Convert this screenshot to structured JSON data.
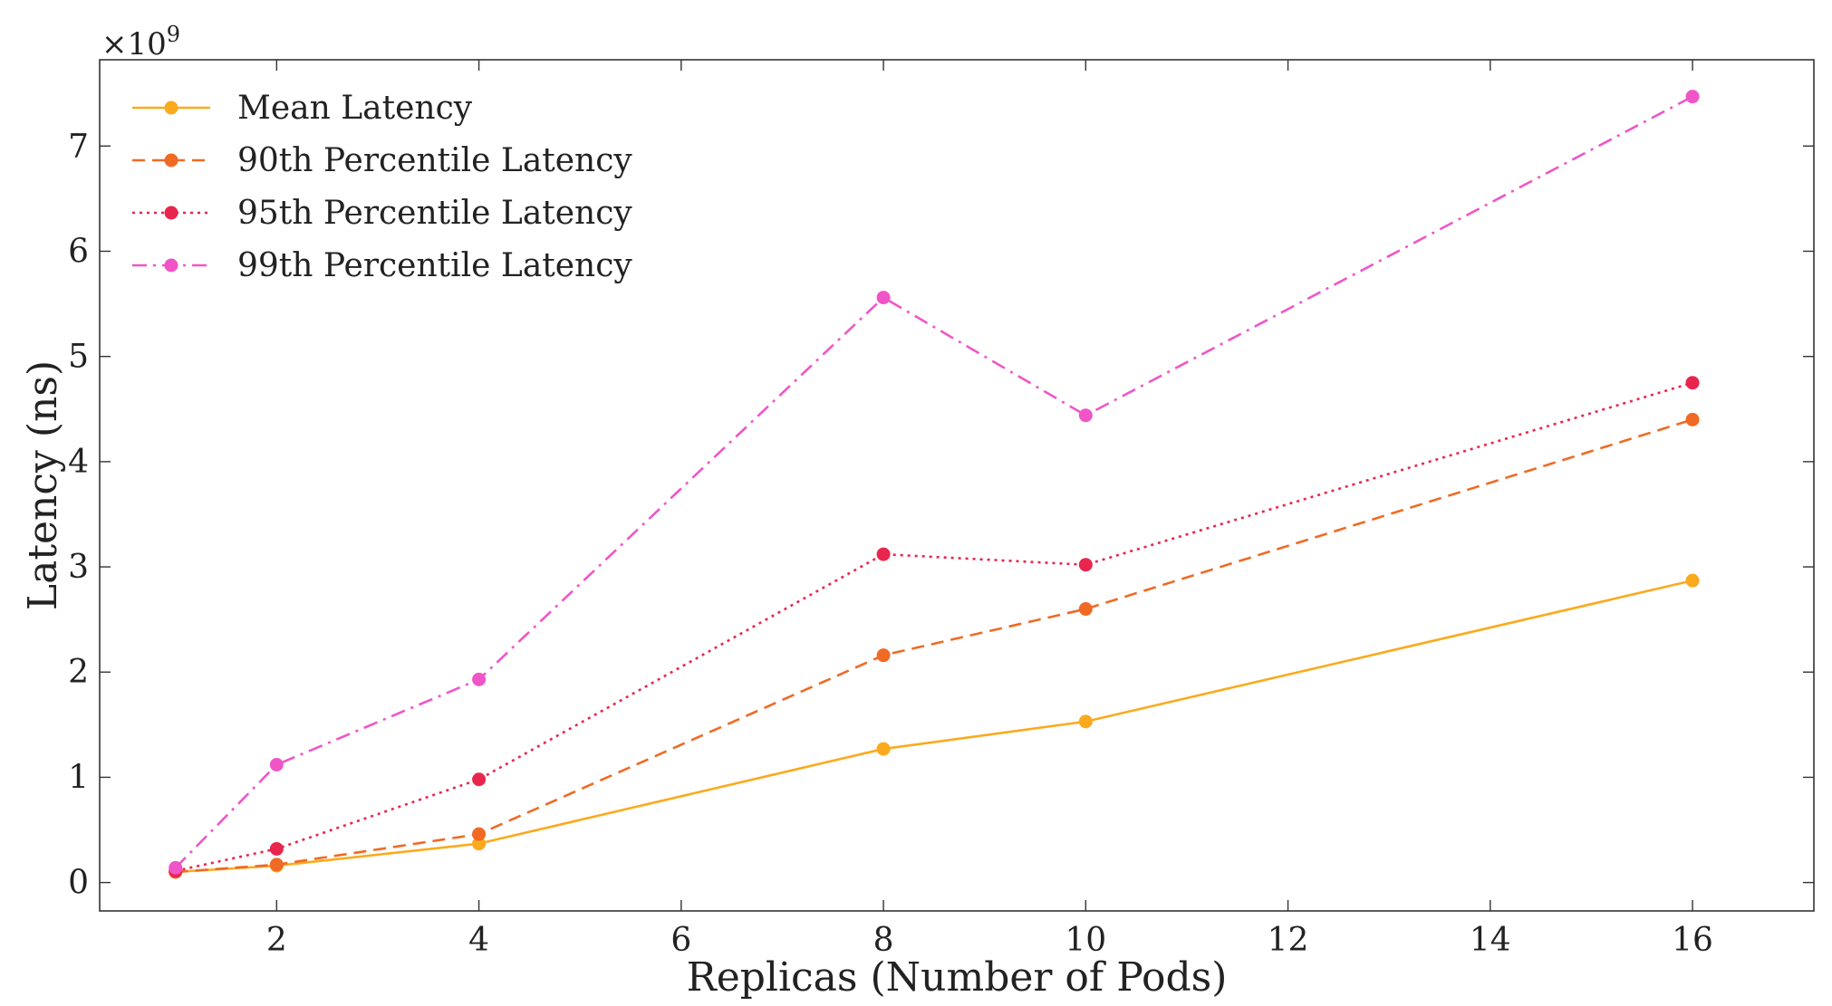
{
  "chart_data": {
    "type": "line",
    "xlabel": "Replicas (Number of Pods)",
    "ylabel": "Latency (ns)",
    "y_multiplier_base": "×10",
    "y_multiplier_exp": "9",
    "xlim": [
      0.25,
      17.2
    ],
    "ylim": [
      -0.27,
      7.82
    ],
    "x_ticks": [
      2,
      4,
      6,
      8,
      10,
      12,
      14,
      16
    ],
    "y_ticks": [
      0,
      1,
      2,
      3,
      4,
      5,
      6,
      7
    ],
    "grid": false,
    "legend_placement": "top-left",
    "x": [
      1,
      2,
      4,
      8,
      10,
      16
    ],
    "series": [
      {
        "name": "Mean Latency",
        "color": "#FBAA1D",
        "dash": "solid",
        "values": [
          0.1,
          0.16,
          0.37,
          1.27,
          1.53,
          2.87
        ]
      },
      {
        "name": "90th Percentile Latency",
        "color": "#F06A24",
        "dash": "dashed",
        "values": [
          0.1,
          0.17,
          0.46,
          2.16,
          2.6,
          4.4
        ]
      },
      {
        "name": "95th Percentile Latency",
        "color": "#E8264D",
        "dash": "dotted",
        "values": [
          0.11,
          0.32,
          0.98,
          3.12,
          3.02,
          4.75
        ]
      },
      {
        "name": "99th Percentile Latency",
        "color": "#F055C8",
        "dash": "dashdot",
        "values": [
          0.14,
          1.12,
          1.93,
          5.56,
          4.44,
          7.47
        ]
      }
    ]
  }
}
